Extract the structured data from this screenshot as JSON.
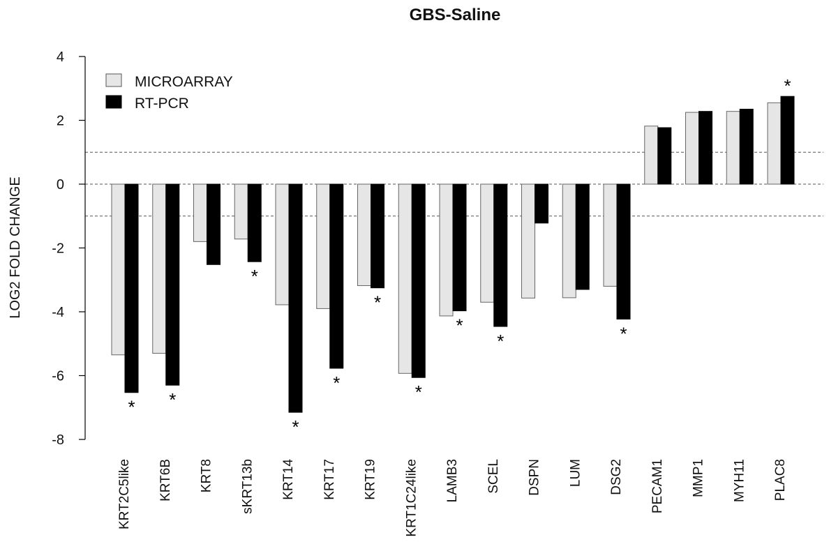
{
  "chart_data": {
    "type": "bar",
    "title": "GBS-Saline",
    "ylabel": "LOG2 FOLD CHANGE",
    "xlabel": "",
    "ylim": [
      -8,
      4
    ],
    "yticks": [
      4,
      2,
      0,
      -2,
      -4,
      -6,
      -8
    ],
    "reference_lines": [
      1,
      0,
      -1
    ],
    "legend_position": "top-left",
    "categories": [
      "KRT2C5like",
      "KRT6B",
      "KRT8",
      "sKRT13b",
      "KRT14",
      "KRT17",
      "KRT19",
      "KRT1C24like",
      "LAMB3",
      "SCEL",
      "DSPN",
      "LUM",
      "DSG2",
      "PECAM1",
      "MMP1",
      "MYH11",
      "PLAC8"
    ],
    "series": [
      {
        "name": "MICROARRAY",
        "color": "#e6e6e6",
        "values": [
          -5.35,
          -5.3,
          -1.8,
          -1.72,
          -3.78,
          -3.9,
          -3.18,
          -5.93,
          -4.13,
          -3.7,
          -3.57,
          -3.56,
          -3.2,
          1.82,
          2.25,
          2.28,
          2.55
        ]
      },
      {
        "name": "RT-PCR",
        "color": "#000000",
        "values": [
          -6.53,
          -6.3,
          -2.52,
          -2.43,
          -7.15,
          -5.77,
          -3.25,
          -6.06,
          -3.97,
          -4.46,
          -1.22,
          -3.3,
          -4.23,
          1.77,
          2.28,
          2.35,
          2.75
        ]
      }
    ],
    "significance_marker": "*",
    "significant": [
      true,
      true,
      false,
      true,
      true,
      true,
      true,
      true,
      true,
      true,
      false,
      false,
      true,
      false,
      false,
      false,
      true
    ]
  }
}
